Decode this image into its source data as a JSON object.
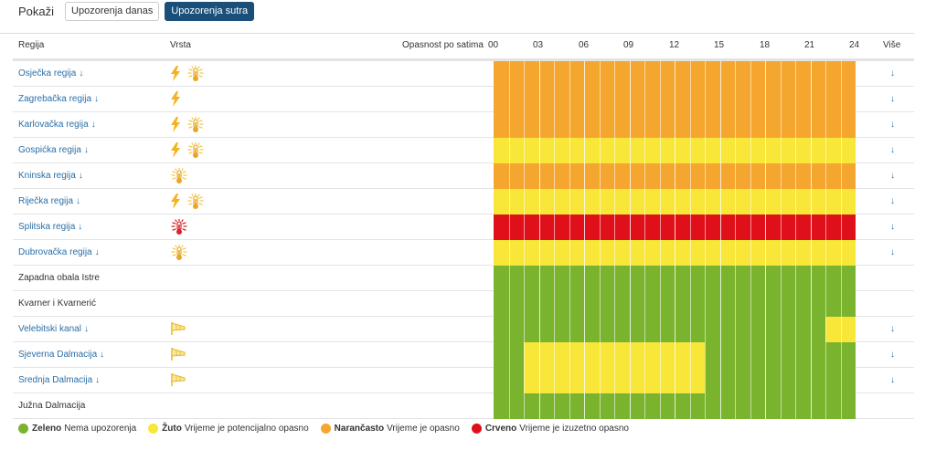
{
  "toolbar": {
    "show_label": "Pokaži",
    "tab_today": "Upozorenja danas",
    "tab_tomorrow": "Upozorenja sutra"
  },
  "header": {
    "region": "Regija",
    "type": "Vrsta",
    "hourly": "Opasnost po satima",
    "more": "Više",
    "hours": [
      "00",
      "03",
      "06",
      "09",
      "12",
      "15",
      "18",
      "21",
      "24"
    ]
  },
  "colors": {
    "green": "#7ab32e",
    "yellow": "#f8e638",
    "orange": "#f5a62e",
    "red": "#e0101b"
  },
  "rows": [
    {
      "name": "Osječka regija",
      "link": true,
      "icons": [
        "lightning-icon",
        "thermometer-icon"
      ],
      "segments": [
        {
          "from": 0,
          "to": 24,
          "level": "orange"
        }
      ]
    },
    {
      "name": "Zagrebačka regija",
      "link": true,
      "icons": [
        "lightning-icon"
      ],
      "segments": [
        {
          "from": 0,
          "to": 24,
          "level": "orange"
        }
      ]
    },
    {
      "name": "Karlovačka regija",
      "link": true,
      "icons": [
        "lightning-icon",
        "thermometer-icon"
      ],
      "segments": [
        {
          "from": 0,
          "to": 24,
          "level": "orange"
        }
      ]
    },
    {
      "name": "Gospićka regija",
      "link": true,
      "icons": [
        "lightning-icon",
        "thermometer-icon"
      ],
      "segments": [
        {
          "from": 0,
          "to": 24,
          "level": "yellow"
        }
      ]
    },
    {
      "name": "Kninska regija",
      "link": true,
      "icons": [
        "thermometer-icon"
      ],
      "segments": [
        {
          "from": 0,
          "to": 24,
          "level": "orange"
        }
      ]
    },
    {
      "name": "Riječka regija",
      "link": true,
      "icons": [
        "lightning-icon",
        "thermometer-icon"
      ],
      "segments": [
        {
          "from": 0,
          "to": 24,
          "level": "yellow"
        }
      ]
    },
    {
      "name": "Splitska regija",
      "link": true,
      "icons": [
        "thermometer-red-icon"
      ],
      "segments": [
        {
          "from": 0,
          "to": 24,
          "level": "red"
        }
      ]
    },
    {
      "name": "Dubrovačka regija",
      "link": true,
      "icons": [
        "thermometer-icon"
      ],
      "segments": [
        {
          "from": 0,
          "to": 24,
          "level": "yellow"
        }
      ]
    },
    {
      "name": "Zapadna obala Istre",
      "link": false,
      "icons": [],
      "segments": [
        {
          "from": 0,
          "to": 24,
          "level": "green"
        }
      ]
    },
    {
      "name": "Kvarner i Kvarnerić",
      "link": false,
      "icons": [],
      "segments": [
        {
          "from": 0,
          "to": 24,
          "level": "green"
        }
      ]
    },
    {
      "name": "Velebitski kanal",
      "link": true,
      "icons": [
        "wind-flag-icon"
      ],
      "segments": [
        {
          "from": 0,
          "to": 22,
          "level": "green"
        },
        {
          "from": 22,
          "to": 24,
          "level": "yellow"
        }
      ]
    },
    {
      "name": "Sjeverna Dalmacija",
      "link": true,
      "icons": [
        "wind-flag-icon"
      ],
      "segments": [
        {
          "from": 0,
          "to": 2,
          "level": "green"
        },
        {
          "from": 2,
          "to": 14,
          "level": "yellow"
        },
        {
          "from": 14,
          "to": 24,
          "level": "green"
        }
      ]
    },
    {
      "name": "Srednja Dalmacija",
      "link": true,
      "icons": [
        "wind-flag-icon"
      ],
      "segments": [
        {
          "from": 0,
          "to": 2,
          "level": "green"
        },
        {
          "from": 2,
          "to": 14,
          "level": "yellow"
        },
        {
          "from": 14,
          "to": 24,
          "level": "green"
        }
      ]
    },
    {
      "name": "Južna Dalmacija",
      "link": false,
      "icons": [],
      "segments": [
        {
          "from": 0,
          "to": 24,
          "level": "green"
        }
      ]
    }
  ],
  "legend": [
    {
      "level": "green",
      "title": "Zeleno",
      "desc": "Nema upozorenja"
    },
    {
      "level": "yellow",
      "title": "Žuto",
      "desc": "Vrijeme je potencijalno opasno"
    },
    {
      "level": "orange",
      "title": "Narančasto",
      "desc": "Vrijeme je opasno"
    },
    {
      "level": "red",
      "title": "Crveno",
      "desc": "Vrijeme je izuzetno opasno"
    }
  ]
}
